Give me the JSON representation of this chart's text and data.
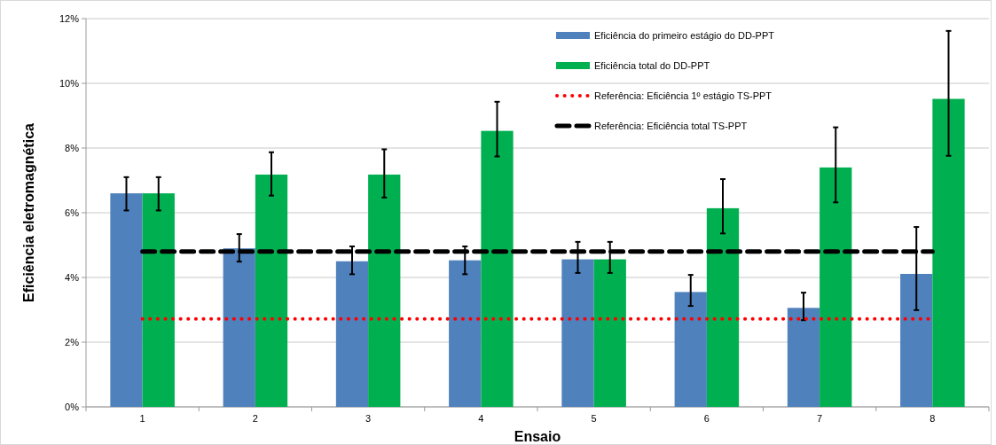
{
  "chart_data": {
    "type": "bar",
    "xlabel": "Ensaio",
    "ylabel": "Eficiência eletromagnética",
    "categories": [
      "1",
      "2",
      "3",
      "4",
      "5",
      "6",
      "7",
      "8"
    ],
    "ylim": [
      0,
      12
    ],
    "yticks": [
      {
        "value": 0,
        "label": "0%"
      },
      {
        "value": 2,
        "label": "2%"
      },
      {
        "value": 4,
        "label": "4%"
      },
      {
        "value": 6,
        "label": "6%"
      },
      {
        "value": 8,
        "label": "8%"
      },
      {
        "value": 10,
        "label": "10%"
      },
      {
        "value": 12,
        "label": "12%"
      }
    ],
    "grid": "y",
    "legend": "top right",
    "marker": "none",
    "series": [
      {
        "name": "Eficiência do primeiro estágio do DD-PPT",
        "color": "#4f81bd",
        "values": [
          6.6,
          4.9,
          4.5,
          4.53,
          4.56,
          3.55,
          3.06,
          4.11
        ],
        "errors": [
          [
            6.07,
            7.1
          ],
          [
            4.49,
            5.34
          ],
          [
            4.1,
            4.96
          ],
          [
            4.1,
            4.96
          ],
          [
            4.14,
            5.1
          ],
          [
            3.12,
            4.08
          ],
          [
            2.68,
            3.53
          ],
          [
            2.99,
            5.56
          ]
        ]
      },
      {
        "name": "Eficiência total do DD-PPT",
        "color": "#00b050",
        "values": [
          6.6,
          7.18,
          7.18,
          8.53,
          4.56,
          6.14,
          7.4,
          9.52
        ],
        "errors": [
          [
            6.07,
            7.1
          ],
          [
            6.53,
            7.87
          ],
          [
            6.47,
            7.96
          ],
          [
            7.74,
            9.43
          ],
          [
            4.14,
            5.1
          ],
          [
            5.36,
            7.04
          ],
          [
            6.32,
            8.64
          ],
          [
            7.76,
            11.62
          ]
        ]
      },
      {
        "name": "Referência: Eficiência 1º  estágio TS-PPT",
        "type": "line",
        "line_style": "dotted",
        "color": "#ff0000",
        "values": [
          2.72,
          2.72,
          2.72,
          2.72,
          2.72,
          2.72,
          2.72,
          2.72
        ]
      },
      {
        "name": "Referência: Eficiência total  TS-PPT",
        "type": "line",
        "line_style": "dashed",
        "color": "#000000",
        "values": [
          4.8,
          4.8,
          4.8,
          4.8,
          4.8,
          4.8,
          4.8,
          4.8
        ]
      }
    ]
  }
}
